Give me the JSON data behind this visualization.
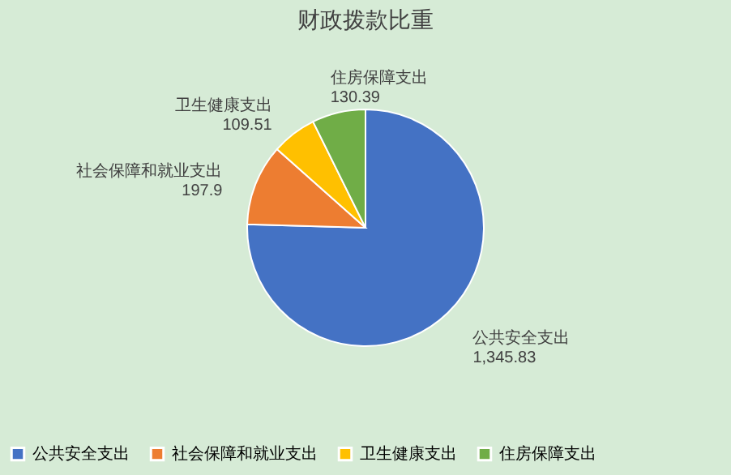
{
  "chart_data": {
    "type": "pie",
    "title": "财政拨款比重",
    "categories": [
      "公共安全支出",
      "社会保障和就业支出",
      "卫生健康支出",
      "住房保障支出"
    ],
    "values": [
      1345.83,
      197.9,
      109.51,
      130.39
    ],
    "value_labels": [
      "1,345.83",
      "197.9",
      "109.51",
      "130.39"
    ],
    "colors": [
      "#4472c4",
      "#ed7d31",
      "#ffc000",
      "#70ad47"
    ],
    "legend": "bottom"
  }
}
